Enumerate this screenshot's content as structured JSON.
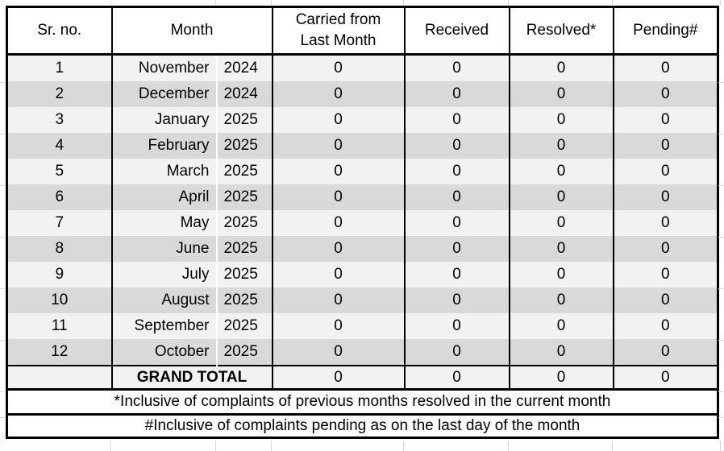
{
  "table": {
    "headers": {
      "sr_no": "Sr. no.",
      "month": "Month",
      "carried": "Carried from\nLast Month",
      "received": "Received",
      "resolved": "Resolved*",
      "pending": "Pending#"
    },
    "rows": [
      {
        "sr": "1",
        "month": "November",
        "year": "2024",
        "carried": "0",
        "received": "0",
        "resolved": "0",
        "pending": "0"
      },
      {
        "sr": "2",
        "month": "December",
        "year": "2024",
        "carried": "0",
        "received": "0",
        "resolved": "0",
        "pending": "0"
      },
      {
        "sr": "3",
        "month": "January",
        "year": "2025",
        "carried": "0",
        "received": "0",
        "resolved": "0",
        "pending": "0"
      },
      {
        "sr": "4",
        "month": "February",
        "year": "2025",
        "carried": "0",
        "received": "0",
        "resolved": "0",
        "pending": "0"
      },
      {
        "sr": "5",
        "month": "March",
        "year": "2025",
        "carried": "0",
        "received": "0",
        "resolved": "0",
        "pending": "0"
      },
      {
        "sr": "6",
        "month": "April",
        "year": "2025",
        "carried": "0",
        "received": "0",
        "resolved": "0",
        "pending": "0"
      },
      {
        "sr": "7",
        "month": "May",
        "year": "2025",
        "carried": "0",
        "received": "0",
        "resolved": "0",
        "pending": "0"
      },
      {
        "sr": "8",
        "month": "June",
        "year": "2025",
        "carried": "0",
        "received": "0",
        "resolved": "0",
        "pending": "0"
      },
      {
        "sr": "9",
        "month": "July",
        "year": "2025",
        "carried": "0",
        "received": "0",
        "resolved": "0",
        "pending": "0"
      },
      {
        "sr": "10",
        "month": "August",
        "year": "2025",
        "carried": "0",
        "received": "0",
        "resolved": "0",
        "pending": "0"
      },
      {
        "sr": "11",
        "month": "September",
        "year": "2025",
        "carried": "0",
        "received": "0",
        "resolved": "0",
        "pending": "0"
      },
      {
        "sr": "12",
        "month": "October",
        "year": "2025",
        "carried": "0",
        "received": "0",
        "resolved": "0",
        "pending": "0"
      }
    ],
    "grand_total": {
      "sr": "",
      "label": "GRAND TOTAL",
      "carried": "0",
      "received": "0",
      "resolved": "0",
      "pending": "0"
    },
    "footnotes": [
      "*Inclusive of complaints of previous months resolved in the current month",
      "#Inclusive of complaints pending as on the last day of the month"
    ]
  },
  "colors": {
    "row_light": "#f2f2f2",
    "row_dark": "#d9d9d9",
    "border": "#000000",
    "header_bg": "#ffffff",
    "gridline": "#d8d8d8",
    "text": "#000000"
  }
}
